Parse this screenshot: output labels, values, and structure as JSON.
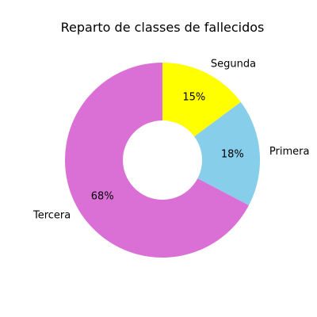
{
  "chart_data": {
    "type": "pie",
    "title": "Reparto de classes de fallecidos",
    "donut": true,
    "legend": "none",
    "categories": [
      "Segunda",
      "Primera",
      "Tercera"
    ],
    "values": [
      15,
      18,
      68
    ],
    "value_labels": [
      "15%",
      "18%",
      "68%"
    ],
    "colors": [
      "#ffff00",
      "#87ceeb",
      "#da70d6"
    ]
  }
}
